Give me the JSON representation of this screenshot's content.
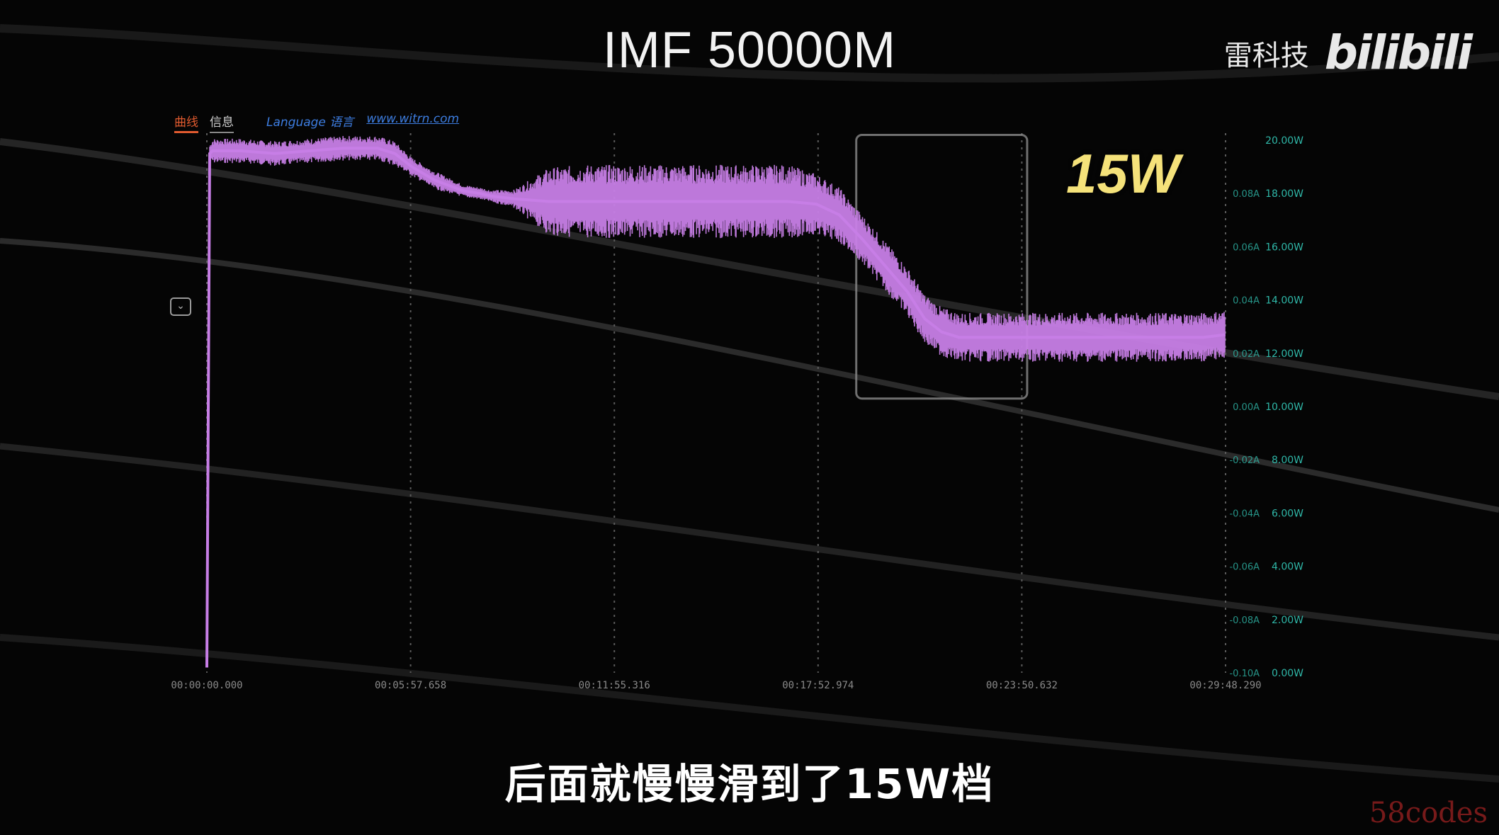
{
  "video": {
    "title": "IMF 50000M",
    "brand_text": "雷科技",
    "brand_logo": "bilibili",
    "subtitle": "后面就慢慢滑到了15W档",
    "watermark": "58codes"
  },
  "app_ui": {
    "tabs": [
      "曲线",
      "信息"
    ],
    "language_link": "Language 语言",
    "site_link": "www.witrn.com"
  },
  "annotation": {
    "label": "15W",
    "color": "#f5e27a"
  },
  "colors": {
    "series": "#c77ee6",
    "axis_text": "#2fb7a8",
    "tab_active": "#e05a2f",
    "link": "#3d7de0"
  },
  "chart_data": {
    "type": "line",
    "title": "",
    "xlabel": "",
    "ylabel": "",
    "x_ticks": [
      "00:00:00.000",
      "00:05:57.658",
      "00:11:55.316",
      "00:17:52.974",
      "00:23:50.632",
      "00:29:48.290"
    ],
    "x_range_seconds": [
      0,
      1788.29
    ],
    "y_power_ticks": [
      "20.00W",
      "18.00W",
      "16.00W",
      "14.00W",
      "12.00W",
      "10.00W",
      "8.00W",
      "6.00W",
      "4.00W",
      "2.00W",
      "0.00W"
    ],
    "y_current_ticks": [
      "0.08A",
      "0.06A",
      "0.04A",
      "0.02A",
      "0.00A",
      "-0.02A",
      "-0.04A",
      "-0.06A",
      "-0.08A",
      "-0.10A"
    ],
    "ylim": [
      0,
      20
    ],
    "series": [
      {
        "name": "",
        "color": "#c77ee6",
        "x": [
          0,
          5,
          10,
          60,
          120,
          180,
          240,
          300,
          330,
          360,
          400,
          450,
          480,
          500,
          540,
          600,
          660,
          720,
          780,
          840,
          900,
          960,
          1020,
          1070,
          1110,
          1150,
          1190,
          1230,
          1260,
          1290,
          1320,
          1360,
          1400,
          1450,
          1500,
          1550,
          1600,
          1650,
          1700,
          1750,
          1788
        ],
        "y": [
          0.2,
          19.5,
          19.6,
          19.6,
          19.5,
          19.6,
          19.7,
          19.7,
          19.5,
          19.0,
          18.5,
          18.1,
          18.0,
          17.9,
          17.8,
          17.7,
          17.7,
          17.7,
          17.7,
          17.7,
          17.7,
          17.7,
          17.7,
          17.6,
          17.2,
          16.3,
          15.3,
          14.3,
          13.3,
          12.8,
          12.6,
          12.6,
          12.6,
          12.6,
          12.6,
          12.6,
          12.6,
          12.6,
          12.6,
          12.6,
          12.7
        ],
        "band_halfwidth": [
          0,
          0.3,
          0.4,
          0.4,
          0.4,
          0.4,
          0.4,
          0.4,
          0.4,
          0.3,
          0.3,
          0.2,
          0.2,
          0.2,
          0.3,
          1.1,
          1.2,
          1.2,
          1.2,
          1.2,
          1.2,
          1.2,
          1.2,
          1.0,
          0.9,
          0.8,
          0.8,
          0.8,
          0.8,
          0.8,
          0.8,
          0.8,
          0.8,
          0.8,
          0.8,
          0.8,
          0.8,
          0.8,
          0.8,
          0.8,
          0.8
        ]
      }
    ],
    "highlight_box_seconds": [
      1140,
      1440
    ],
    "grid": "vertical-dotted",
    "legend": "none"
  }
}
